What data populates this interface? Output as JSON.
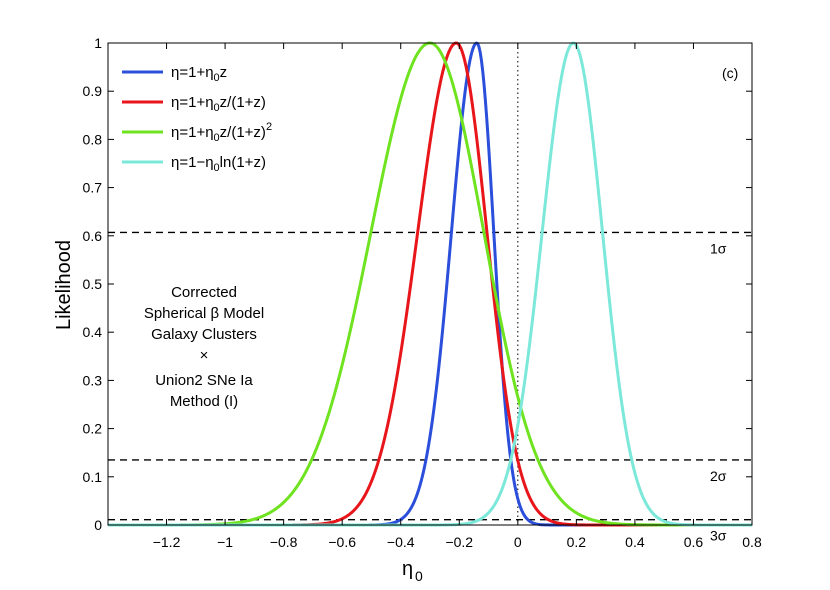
{
  "chart_data": {
    "type": "line",
    "panel_label": "(c)",
    "xlabel_main": "η",
    "xlabel_sub": "0",
    "ylabel": "Likelihood",
    "xlim": [
      -1.4,
      0.8
    ],
    "ylim": [
      0,
      1
    ],
    "xticks": [
      -1.2,
      -1.0,
      -0.8,
      -0.6,
      -0.4,
      -0.2,
      0,
      0.2,
      0.4,
      0.6,
      0.8
    ],
    "xtick_labels": [
      "−1.2",
      "−1",
      "−0.8",
      "−0.6",
      "−0.4",
      "−0.2",
      "0",
      "0.2",
      "0.4",
      "0.6",
      "0.8"
    ],
    "yticks": [
      0,
      0.1,
      0.2,
      0.3,
      0.4,
      0.5,
      0.6,
      0.7,
      0.8,
      0.9,
      1
    ],
    "ytick_labels": [
      "0",
      "0.1",
      "0.2",
      "0.3",
      "0.4",
      "0.5",
      "0.6",
      "0.7",
      "0.8",
      "0.9",
      "1"
    ],
    "series": [
      {
        "legend": {
          "pre": "η=1+η",
          "sub": "0",
          "post": "z",
          "sup": ""
        },
        "color": "#2b4fdb",
        "peak": -0.14,
        "sigma_left": 0.0869,
        "sigma_right": 0.058
      },
      {
        "legend": {
          "pre": "η=1+η",
          "sub": "0",
          "post": "z/(1+z)",
          "sup": ""
        },
        "color": "#e8161b",
        "peak": -0.21,
        "sigma_left": 0.1323,
        "sigma_right": 0.1047
      },
      {
        "legend": {
          "pre": "η=1+η",
          "sub": "0",
          "post": "z/(1+z)",
          "sup": "2"
        },
        "color": "#6fe31f",
        "peak": -0.3,
        "sigma_left": 0.2021,
        "sigma_right": 0.1843
      },
      {
        "legend": {
          "pre": "η=1−η",
          "sub": "0",
          "post": "ln(1+z)",
          "sup": ""
        },
        "color": "#7be8d9",
        "peak": 0.19,
        "sigma_left": 0.107,
        "sigma_right": 0.0995
      }
    ],
    "confidence_lines": [
      {
        "y": 0.607,
        "label": "1σ"
      },
      {
        "y": 0.135,
        "label": "2σ"
      },
      {
        "y": 0.011,
        "label": "3σ"
      }
    ],
    "vertical_reference_x": 0,
    "annotation_lines": [
      "Corrected",
      "Spherical β Model",
      "Galaxy Clusters",
      "×",
      "Union2 SNe Ia",
      "Method (I)"
    ]
  }
}
